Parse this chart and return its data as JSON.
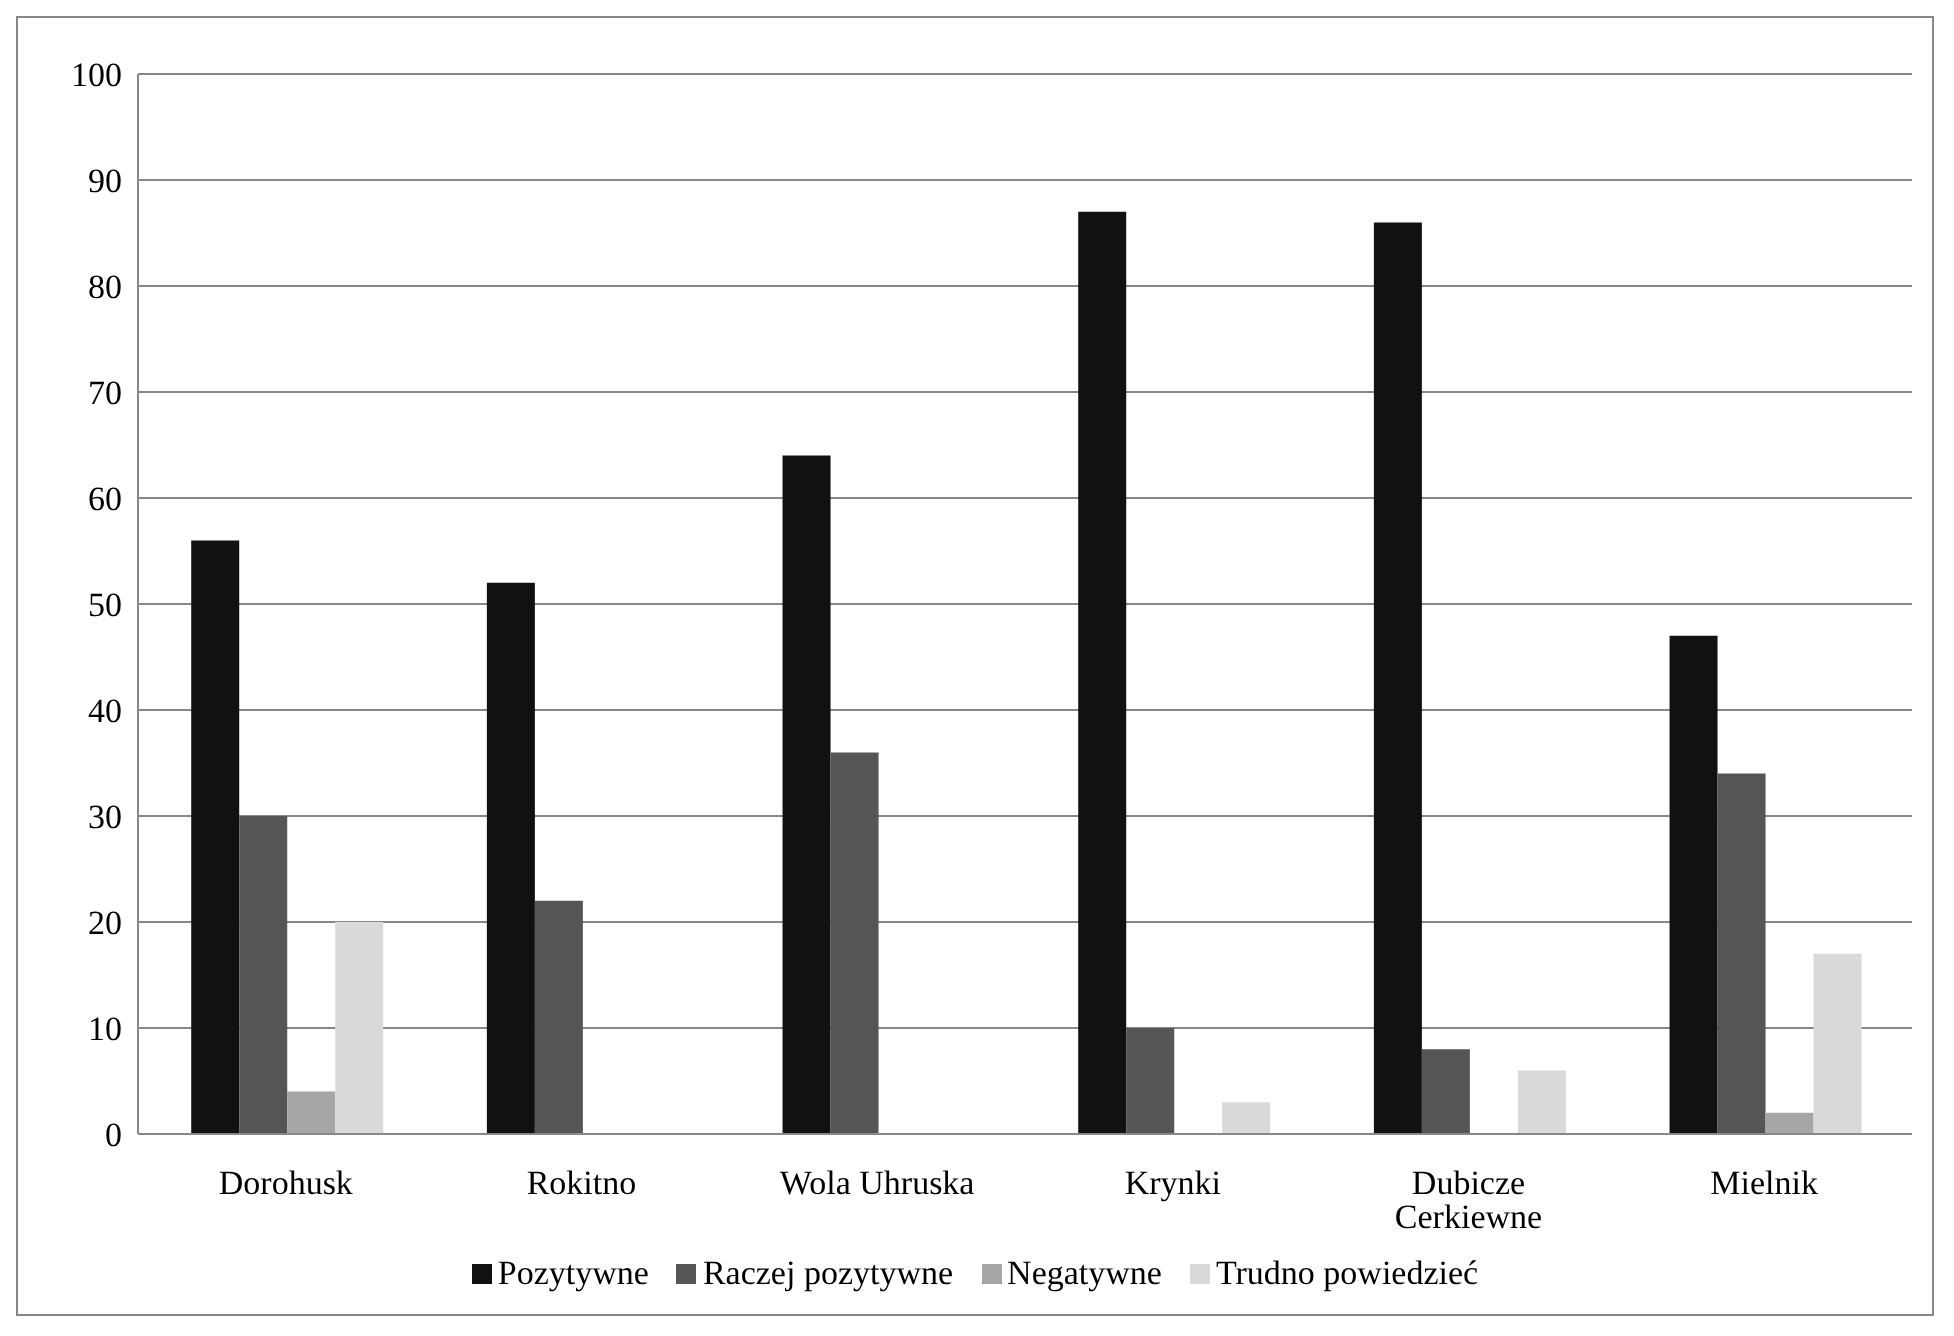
{
  "chart_data": {
    "type": "bar",
    "categories": [
      "Dorohusk",
      "Rokitno",
      "Wola Uhruska",
      "Krynki",
      "Dubicze Cerkiewne",
      "Mielnik"
    ],
    "series": [
      {
        "name": "Pozytywne",
        "color": "#111111",
        "values": [
          56,
          52,
          64,
          87,
          86,
          47
        ]
      },
      {
        "name": "Raczej pozytywne",
        "color": "#555555",
        "values": [
          30,
          22,
          36,
          10,
          8,
          34
        ]
      },
      {
        "name": "Negatywne",
        "color": "#a6a6a6",
        "values": [
          4,
          0,
          0,
          0,
          0,
          2
        ]
      },
      {
        "name": "Trudno powiedzieć",
        "color": "#d9d9d9",
        "values": [
          20,
          0,
          0,
          3,
          6,
          17
        ]
      }
    ],
    "ylim": [
      0,
      100
    ],
    "yticks": [
      0,
      10,
      20,
      30,
      40,
      50,
      60,
      70,
      80,
      90,
      100
    ],
    "grid": "y",
    "legend": "bottom"
  }
}
